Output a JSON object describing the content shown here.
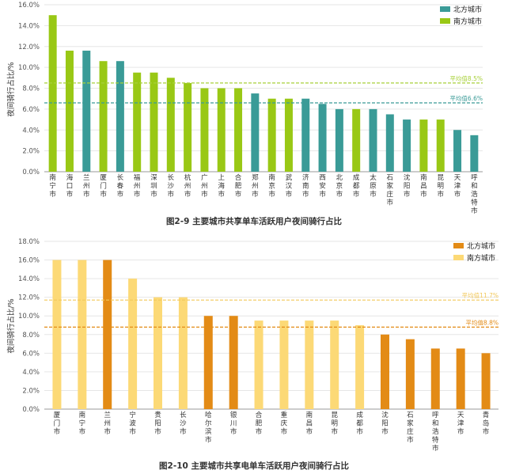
{
  "chart_data": [
    {
      "type": "bar",
      "title": "图2-9 主要城市共享单车活跃用户夜间骑行占比",
      "xlabel": "",
      "ylabel": "夜间骑行占比/%",
      "ylim": [
        0,
        16
      ],
      "yticks": [
        "0.0%",
        "2.0%",
        "4.0%",
        "6.0%",
        "8.0%",
        "10.0%",
        "12.0%",
        "14.0%",
        "16.0%"
      ],
      "tick_values": [
        0,
        2,
        4,
        6,
        8,
        10,
        12,
        14,
        16
      ],
      "categories": [
        "南宁市",
        "海口市",
        "兰州市",
        "厦门市",
        "长春市",
        "福州市",
        "深圳市",
        "长沙市",
        "杭州市",
        "广州市",
        "上海市",
        "合肥市",
        "郑州市",
        "南京市",
        "武汉市",
        "济南市",
        "西安市",
        "北京市",
        "成都市",
        "太原市",
        "石家庄市",
        "沈阳市",
        "南昌市",
        "昆明市",
        "天津市",
        "呼和浩特市"
      ],
      "values": [
        15.0,
        11.6,
        11.6,
        10.6,
        10.6,
        9.5,
        9.5,
        9.0,
        8.5,
        8.0,
        8.0,
        8.0,
        7.5,
        7.0,
        7.0,
        7.0,
        6.5,
        6.0,
        6.0,
        6.0,
        5.5,
        5.0,
        5.0,
        5.0,
        4.0,
        3.5
      ],
      "groups": [
        "south",
        "south",
        "north",
        "south",
        "north",
        "south",
        "south",
        "south",
        "south",
        "south",
        "south",
        "south",
        "north",
        "south",
        "south",
        "north",
        "north",
        "north",
        "south",
        "north",
        "north",
        "north",
        "south",
        "south",
        "north",
        "north"
      ],
      "series": [
        {
          "key": "north",
          "name": "北方城市",
          "color": "#3a9b97"
        },
        {
          "key": "south",
          "name": "南方城市",
          "color": "#99c815"
        }
      ],
      "averages": [
        {
          "label": "平均值8.5%",
          "value": 8.5,
          "color": "#a8d13a"
        },
        {
          "label": "平均值6.6%",
          "value": 6.6,
          "color": "#3a9b97"
        }
      ],
      "legend": "top-right",
      "grid": true
    },
    {
      "type": "bar",
      "title": "图2-10 主要城市共享电单车活跃用户夜间骑行占比",
      "xlabel": "",
      "ylabel": "夜间骑行占比/%",
      "ylim": [
        0,
        18
      ],
      "yticks": [
        "0.0%",
        "2.0%",
        "4.0%",
        "6.0%",
        "8.0%",
        "10.0%",
        "12.0%",
        "14.0%",
        "16.0%",
        "18.0%"
      ],
      "tick_values": [
        0,
        2,
        4,
        6,
        8,
        10,
        12,
        14,
        16,
        18
      ],
      "categories": [
        "厦门市",
        "南宁市",
        "兰州市",
        "宁波市",
        "贵阳市",
        "长沙市",
        "哈尔滨市",
        "银川市",
        "合肥市",
        "重庆市",
        "南昌市",
        "昆明市",
        "成都市",
        "沈阳市",
        "石家庄市",
        "呼和浩特市",
        "天津市",
        "青岛市"
      ],
      "values": [
        16.0,
        16.0,
        16.0,
        14.0,
        12.0,
        12.0,
        10.0,
        10.0,
        9.5,
        9.5,
        9.5,
        9.5,
        9.0,
        8.0,
        7.5,
        6.5,
        6.5,
        6.0
      ],
      "groups": [
        "south",
        "south",
        "north",
        "south",
        "south",
        "south",
        "north",
        "north",
        "south",
        "south",
        "south",
        "south",
        "south",
        "north",
        "north",
        "north",
        "north",
        "north"
      ],
      "series": [
        {
          "key": "north",
          "name": "北方城市",
          "color": "#e38b16"
        },
        {
          "key": "south",
          "name": "南方城市",
          "color": "#fcd976"
        }
      ],
      "averages": [
        {
          "label": "平均值11.7%",
          "value": 11.7,
          "color": "#f2c85a"
        },
        {
          "label": "平均值8.8%",
          "value": 8.8,
          "color": "#e38b16"
        }
      ],
      "legend": "top-right",
      "grid": true
    }
  ]
}
